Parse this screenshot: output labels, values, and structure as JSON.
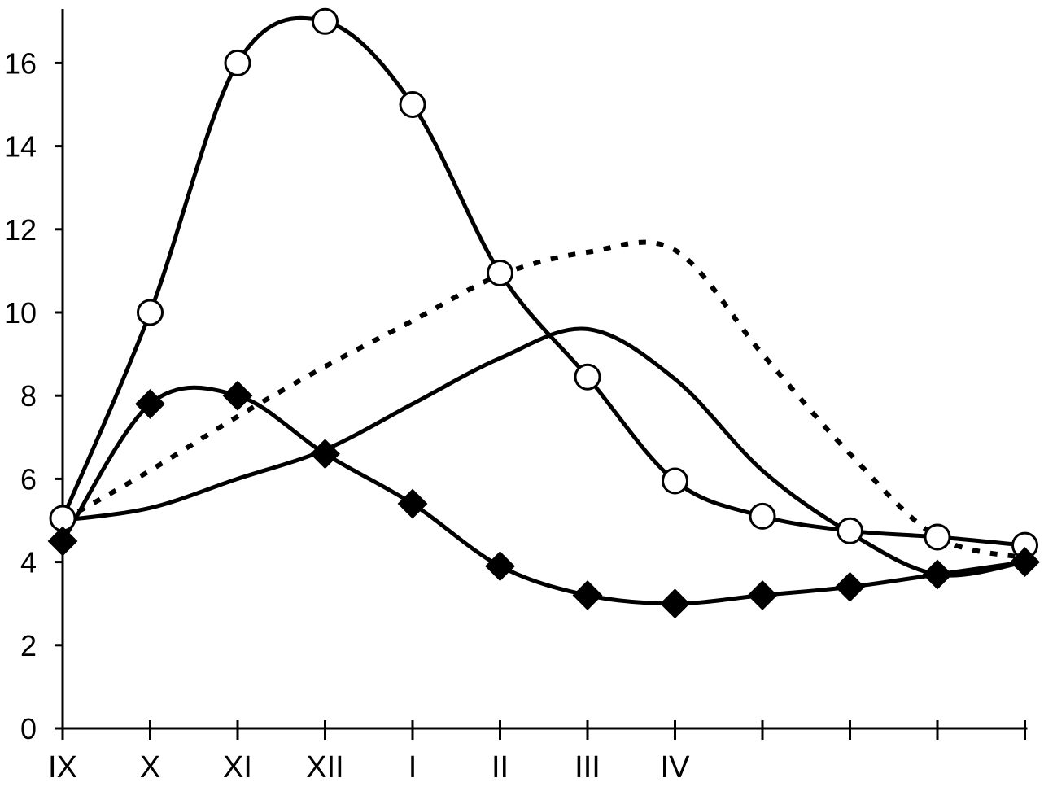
{
  "chart_data": {
    "type": "line",
    "title": "",
    "xlabel": "",
    "ylabel": "",
    "categories": [
      "IX",
      "X",
      "XI",
      "XII",
      "I",
      "II",
      "III",
      "IV",
      "",
      "",
      "",
      ""
    ],
    "y_ticks": [
      0,
      2,
      4,
      6,
      8,
      10,
      12,
      14,
      16
    ],
    "ylim": [
      0,
      17.3
    ],
    "grid": false,
    "legend": "none",
    "series": [
      {
        "marker": "open-circle",
        "line_style": "solid",
        "color": "#000000",
        "values": [
          5.05,
          10.0,
          16.0,
          17.0,
          15.0,
          10.95,
          8.45,
          5.95,
          5.1,
          4.75,
          4.6,
          4.4
        ]
      },
      {
        "marker": "filled-diamond",
        "line_style": "solid",
        "color": "#000000",
        "values": [
          4.5,
          7.8,
          8.0,
          6.6,
          5.4,
          3.9,
          3.2,
          3.0,
          3.2,
          3.4,
          3.7,
          4.0
        ]
      },
      {
        "marker": "none",
        "line_style": "solid",
        "color": "#000000",
        "values": [
          5.0,
          5.3,
          6.0,
          6.7,
          7.8,
          8.9,
          9.6,
          8.4,
          6.2,
          4.7,
          3.7,
          4.0
        ]
      },
      {
        "marker": "none",
        "line_style": "dotted",
        "color": "#000000",
        "values": [
          5.0,
          6.2,
          7.5,
          8.7,
          9.8,
          10.9,
          11.45,
          11.5,
          9.0,
          6.6,
          4.6,
          4.1
        ]
      }
    ]
  }
}
